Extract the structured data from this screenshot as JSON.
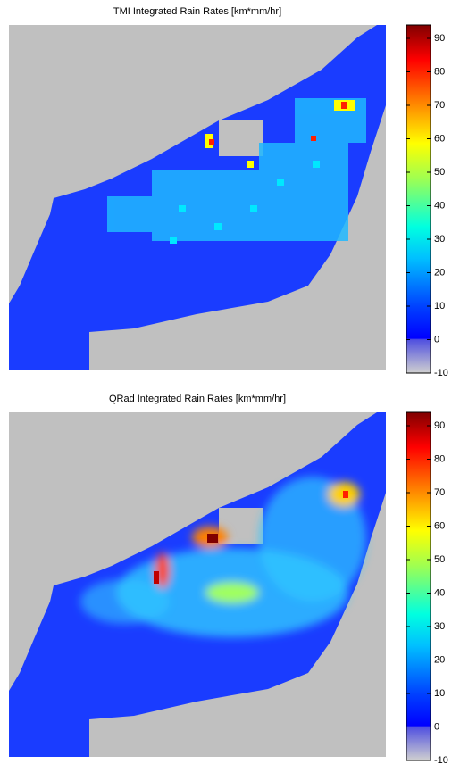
{
  "chart_data": [
    {
      "type": "heatmap",
      "title": "TMI Integrated Rain Rates [km*mm/hr]",
      "clim": [
        -10,
        94
      ],
      "cticks": [
        -10,
        0,
        10,
        20,
        30,
        40,
        50,
        60,
        70,
        80,
        90
      ]
    },
    {
      "type": "heatmap",
      "title": "QRad Integrated Rain Rates [km*mm/hr]",
      "clim": [
        -10,
        94
      ],
      "cticks": [
        -10,
        0,
        10,
        20,
        30,
        40,
        50,
        60,
        70,
        80,
        90
      ]
    }
  ]
}
